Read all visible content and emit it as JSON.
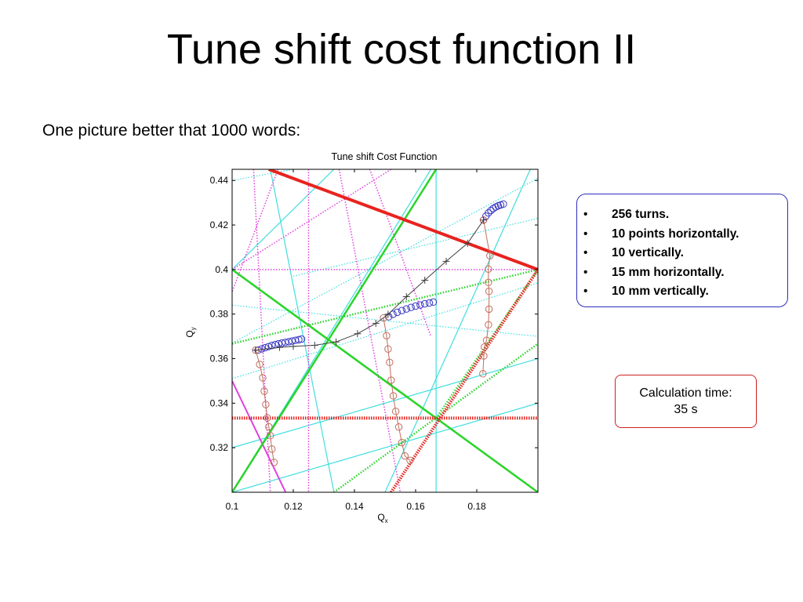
{
  "slide": {
    "title": "Tune shift cost function II",
    "subtitle": "One picture better that 1000 words:"
  },
  "info_box": {
    "items": [
      "256 turns.",
      "10 points horizontally.",
      "10 vertically.",
      "15 mm horizontally.",
      "10 mm vertically."
    ]
  },
  "calc_box": {
    "line1": "Calculation time:",
    "line2": "35 s"
  },
  "chart_data": {
    "type": "scatter",
    "title": "Tune shift Cost Function",
    "xlabel": "Q",
    "xlabel_sub": "x",
    "ylabel": "Q",
    "ylabel_sub": "y",
    "xlim": [
      0.1,
      0.2
    ],
    "ylim": [
      0.3,
      0.445
    ],
    "x_ticks": [
      0.1,
      0.12,
      0.14,
      0.16,
      0.18
    ],
    "y_ticks": [
      0.32,
      0.34,
      0.36,
      0.38,
      0.4,
      0.42,
      0.44
    ],
    "colors": {
      "red": "#e8231e",
      "green": "#2ad42a",
      "magenta": "#e040e0",
      "cyan": "#40dede",
      "blue": "#3636c4",
      "brown": "#c06e5c",
      "black": "#404040"
    },
    "resonance_lines": [
      {
        "order": 2,
        "color": "red",
        "style": "solid",
        "width": 4,
        "p1": [
          0.112,
          0.445
        ],
        "p2": [
          0.2,
          0.4
        ]
      },
      {
        "order": 2,
        "color": "red",
        "style": "dotted",
        "width": 4,
        "p1": [
          0.1,
          0.3333
        ],
        "p2": [
          0.2,
          0.3333
        ]
      },
      {
        "order": 2,
        "color": "red",
        "style": "dotted",
        "width": 4,
        "p1": [
          0.152,
          0.3
        ],
        "p2": [
          0.2,
          0.4
        ]
      },
      {
        "order": 3,
        "color": "green",
        "style": "solid",
        "width": 2.5,
        "p1": [
          0.1,
          0.4
        ],
        "p2": [
          0.2,
          0.3
        ]
      },
      {
        "order": 3,
        "color": "green",
        "style": "solid",
        "width": 2.5,
        "p1": [
          0.1,
          0.3
        ],
        "p2": [
          0.1667,
          0.445
        ]
      },
      {
        "order": 3,
        "color": "green",
        "style": "dotted",
        "width": 2.5,
        "p1": [
          0.1,
          0.3667
        ],
        "p2": [
          0.2,
          0.4
        ]
      },
      {
        "order": 3,
        "color": "green",
        "style": "dotted",
        "width": 2.5,
        "p1": [
          0.1,
          0.4
        ],
        "p2": [
          0.1667,
          0.3333
        ]
      },
      {
        "order": 3,
        "color": "green",
        "style": "dotted",
        "width": 2.5,
        "p1": [
          0.1667,
          0.3333
        ],
        "p2": [
          0.2,
          0.4
        ]
      },
      {
        "order": 3,
        "color": "green",
        "style": "dotted",
        "width": 2.5,
        "p1": [
          0.1333,
          0.3
        ],
        "p2": [
          0.2,
          0.3667
        ]
      },
      {
        "order": 4,
        "color": "magenta",
        "style": "solid",
        "width": 2,
        "p1": [
          0.1,
          0.35
        ],
        "p2": [
          0.1175,
          0.3
        ]
      },
      {
        "order": 4,
        "color": "magenta",
        "style": "dotted",
        "width": 1.5,
        "p1": [
          0.1,
          0.4
        ],
        "p2": [
          0.2,
          0.4
        ]
      },
      {
        "order": 4,
        "color": "magenta",
        "style": "dotted",
        "width": 1.5,
        "p1": [
          0.1,
          0.4
        ],
        "p2": [
          0.152,
          0.445
        ]
      },
      {
        "order": 4,
        "color": "magenta",
        "style": "dotted",
        "width": 1.5,
        "p1": [
          0.107,
          0.445
        ],
        "p2": [
          0.1125,
          0.3
        ]
      },
      {
        "order": 4,
        "color": "magenta",
        "style": "dotted",
        "width": 1.5,
        "p1": [
          0.115,
          0.445
        ],
        "p2": [
          0.1,
          0.39
        ]
      },
      {
        "order": 4,
        "color": "magenta",
        "style": "dotted",
        "width": 1.5,
        "p1": [
          0.125,
          0.445
        ],
        "p2": [
          0.125,
          0.3
        ]
      },
      {
        "order": 4,
        "color": "magenta",
        "style": "dotted",
        "width": 1.5,
        "p1": [
          0.135,
          0.445
        ],
        "p2": [
          0.155,
          0.3
        ]
      },
      {
        "order": 4,
        "color": "magenta",
        "style": "dotted",
        "width": 1.5,
        "p1": [
          0.145,
          0.445
        ],
        "p2": [
          0.165,
          0.37
        ]
      },
      {
        "order": 5,
        "color": "cyan",
        "style": "solid",
        "width": 1.2,
        "p1": [
          0.1667,
          0.445
        ],
        "p2": [
          0.1667,
          0.3
        ]
      },
      {
        "order": 5,
        "color": "cyan",
        "style": "solid",
        "width": 1.2,
        "p1": [
          0.1,
          0.4
        ],
        "p2": [
          0.1333,
          0.445
        ]
      },
      {
        "order": 5,
        "color": "cyan",
        "style": "solid",
        "width": 1.2,
        "p1": [
          0.1,
          0.3
        ],
        "p2": [
          0.2,
          0.34
        ]
      },
      {
        "order": 5,
        "color": "cyan",
        "style": "solid",
        "width": 1.2,
        "p1": [
          0.1,
          0.32
        ],
        "p2": [
          0.2,
          0.36
        ]
      },
      {
        "order": 5,
        "color": "cyan",
        "style": "solid",
        "width": 1.2,
        "p1": [
          0.1125,
          0.445
        ],
        "p2": [
          0.1333,
          0.3
        ]
      },
      {
        "order": 5,
        "color": "cyan",
        "style": "solid",
        "width": 1.2,
        "p1": [
          0.1,
          0.3
        ],
        "p2": [
          0.165,
          0.445
        ]
      },
      {
        "order": 5,
        "color": "cyan",
        "style": "solid",
        "width": 1.2,
        "p1": [
          0.15,
          0.3
        ],
        "p2": [
          0.1975,
          0.445
        ]
      },
      {
        "order": 5,
        "color": "cyan",
        "style": "dotted",
        "width": 1.2,
        "p1": [
          0.1,
          0.44
        ],
        "p2": [
          0.12,
          0.445
        ]
      },
      {
        "order": 5,
        "color": "cyan",
        "style": "dotted",
        "width": 1.2,
        "p1": [
          0.1,
          0.384
        ],
        "p2": [
          0.2,
          0.37
        ]
      },
      {
        "order": 5,
        "color": "cyan",
        "style": "dotted",
        "width": 1.2,
        "p1": [
          0.1,
          0.367
        ],
        "p2": [
          0.2,
          0.441
        ]
      },
      {
        "order": 5,
        "color": "cyan",
        "style": "dotted",
        "width": 1.2,
        "p1": [
          0.12,
          0.397
        ],
        "p2": [
          0.2,
          0.423
        ]
      },
      {
        "order": 5,
        "color": "cyan",
        "style": "dotted",
        "width": 1.2,
        "p1": [
          0.1,
          0.351
        ],
        "p2": [
          0.2,
          0.394
        ]
      }
    ],
    "series": [
      {
        "marker": "circle",
        "color": "blue",
        "x": [
          0.1085,
          0.1097,
          0.1108,
          0.1119,
          0.113,
          0.1141,
          0.1152,
          0.1163,
          0.1174,
          0.1185,
          0.1196,
          0.1207,
          0.1218,
          0.1227
        ],
        "y": [
          0.3638,
          0.3644,
          0.3649,
          0.3654,
          0.3659,
          0.3663,
          0.3667,
          0.367,
          0.3673,
          0.3676,
          0.3679,
          0.3682,
          0.3685,
          0.3688
        ]
      },
      {
        "marker": "circle",
        "color": "blue",
        "x": [
          0.1512,
          0.1526,
          0.154,
          0.1555,
          0.157,
          0.1585,
          0.16,
          0.1615,
          0.163,
          0.1645,
          0.1658
        ],
        "y": [
          0.3788,
          0.3799,
          0.3808,
          0.3816,
          0.3823,
          0.383,
          0.3836,
          0.3841,
          0.3846,
          0.385,
          0.3854
        ]
      },
      {
        "marker": "circle",
        "color": "blue",
        "x": [
          0.1822,
          0.183,
          0.1838,
          0.1846,
          0.1854,
          0.1862,
          0.187,
          0.1878,
          0.1887
        ],
        "y": [
          0.4222,
          0.424,
          0.4254,
          0.4265,
          0.4274,
          0.4281,
          0.4286,
          0.429,
          0.4294
        ]
      },
      {
        "marker": "circle",
        "color": "brown",
        "connect": true,
        "x": [
          0.1077,
          0.109,
          0.11,
          0.1105,
          0.111,
          0.1115,
          0.112,
          0.1125,
          0.113,
          0.1137
        ],
        "y": [
          0.3638,
          0.3574,
          0.3514,
          0.3454,
          0.3394,
          0.3334,
          0.3294,
          0.3254,
          0.3194,
          0.3134
        ]
      },
      {
        "marker": "circle",
        "color": "brown",
        "connect": true,
        "x": [
          0.1495,
          0.1505,
          0.151,
          0.1515,
          0.152,
          0.1527,
          0.1535,
          0.1545,
          0.1555,
          0.1565,
          0.1582
        ],
        "y": [
          0.3783,
          0.3703,
          0.3643,
          0.3583,
          0.3503,
          0.3433,
          0.3363,
          0.3293,
          0.3223,
          0.3163,
          0.3143
        ]
      },
      {
        "marker": "circle",
        "color": "brown",
        "connect": true,
        "x": [
          0.1822,
          0.1843,
          0.1838,
          0.1838,
          0.184,
          0.184,
          0.1838,
          0.1832,
          0.1825,
          0.1823,
          0.182
        ],
        "y": [
          0.4222,
          0.4062,
          0.4002,
          0.3942,
          0.3902,
          0.3822,
          0.3752,
          0.3682,
          0.3652,
          0.3612,
          0.3532
        ]
      },
      {
        "marker": "plus",
        "color": "black",
        "connect": true,
        "x": [
          0.1077,
          0.1155,
          0.12,
          0.127,
          0.134,
          0.141,
          0.147,
          0.151,
          0.157,
          0.163,
          0.17,
          0.177,
          0.1822
        ],
        "y": [
          0.3638,
          0.365,
          0.3655,
          0.366,
          0.3675,
          0.3712,
          0.3758,
          0.3799,
          0.3878,
          0.3952,
          0.4037,
          0.4118,
          0.4222
        ]
      }
    ]
  }
}
